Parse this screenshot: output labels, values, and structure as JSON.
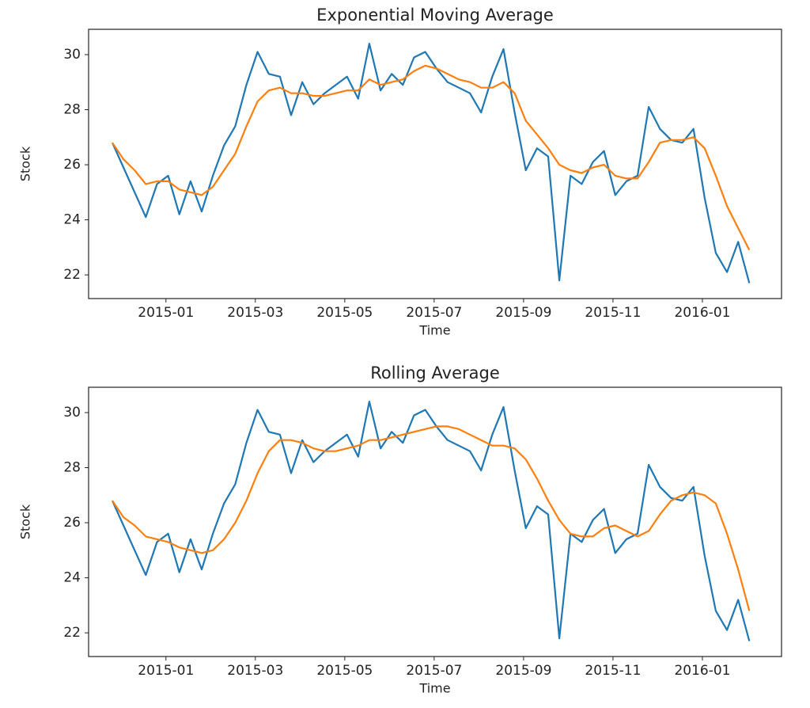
{
  "chart_data": [
    {
      "type": "line",
      "title": "Exponential Moving Average",
      "xlabel": "Time",
      "ylabel": "Stock",
      "x": [
        -1.2,
        -0.95,
        -0.7,
        -0.45,
        -0.2,
        0.05,
        0.3,
        0.55,
        0.8,
        1.05,
        1.3,
        1.55,
        1.8,
        2.05,
        2.3,
        2.55,
        2.8,
        3.05,
        3.3,
        3.55,
        3.8,
        4.05,
        4.3,
        4.55,
        4.8,
        5.05,
        5.3,
        5.55,
        5.8,
        6.05,
        6.3,
        6.55,
        6.8,
        7.05,
        7.3,
        7.55,
        7.8,
        8.05,
        8.3,
        8.55,
        8.8,
        9.05,
        9.3,
        9.55,
        9.8,
        10.05,
        10.3,
        10.55,
        10.8,
        11.05,
        11.3,
        11.55,
        11.8,
        12.05,
        12.3,
        12.55,
        12.8,
        13.05
      ],
      "series": [
        {
          "color": "#1f77b4",
          "values": [
            26.8,
            25.9,
            25.0,
            24.1,
            25.3,
            25.6,
            24.2,
            25.4,
            24.3,
            25.6,
            26.7,
            27.4,
            28.9,
            30.1,
            29.3,
            29.2,
            27.8,
            29.0,
            28.2,
            28.6,
            28.9,
            29.2,
            28.4,
            30.4,
            28.7,
            29.3,
            28.9,
            29.9,
            30.1,
            29.5,
            29.0,
            28.8,
            28.6,
            27.9,
            29.2,
            30.2,
            27.9,
            25.8,
            26.6,
            26.3,
            21.8,
            25.6,
            25.3,
            26.1,
            26.5,
            24.9,
            25.4,
            25.6,
            28.1,
            27.3,
            26.9,
            26.8,
            27.3,
            24.8,
            22.8,
            22.1,
            23.2,
            21.7
          ]
        },
        {
          "color": "#ff7f0e",
          "values": [
            26.8,
            26.2,
            25.8,
            25.3,
            25.4,
            25.4,
            25.1,
            25.0,
            24.9,
            25.2,
            25.8,
            26.4,
            27.4,
            28.3,
            28.7,
            28.8,
            28.6,
            28.6,
            28.5,
            28.5,
            28.6,
            28.7,
            28.7,
            29.1,
            28.9,
            29.0,
            29.1,
            29.4,
            29.6,
            29.5,
            29.3,
            29.1,
            29.0,
            28.8,
            28.8,
            29.0,
            28.6,
            27.6,
            27.1,
            26.6,
            26.0,
            25.8,
            25.7,
            25.9,
            26.0,
            25.6,
            25.5,
            25.5,
            26.1,
            26.8,
            26.9,
            26.9,
            27.0,
            26.6,
            25.6,
            24.5,
            23.7,
            22.9
          ]
        }
      ],
      "xlim": [
        -1.73,
        13.77
      ],
      "ylim": [
        21.14,
        30.92
      ],
      "xticks": [
        {
          "value": 0,
          "label": "2015-01"
        },
        {
          "value": 2,
          "label": "2015-03"
        },
        {
          "value": 4,
          "label": "2015-05"
        },
        {
          "value": 6,
          "label": "2015-07"
        },
        {
          "value": 8,
          "label": "2015-09"
        },
        {
          "value": 10,
          "label": "2015-11"
        },
        {
          "value": 12,
          "label": "2016-01"
        }
      ],
      "yticks": [
        22,
        24,
        26,
        28,
        30
      ]
    },
    {
      "type": "line",
      "title": "Rolling Average",
      "xlabel": "Time",
      "ylabel": "Stock",
      "x": [
        -1.2,
        -0.95,
        -0.7,
        -0.45,
        -0.2,
        0.05,
        0.3,
        0.55,
        0.8,
        1.05,
        1.3,
        1.55,
        1.8,
        2.05,
        2.3,
        2.55,
        2.8,
        3.05,
        3.3,
        3.55,
        3.8,
        4.05,
        4.3,
        4.55,
        4.8,
        5.05,
        5.3,
        5.55,
        5.8,
        6.05,
        6.3,
        6.55,
        6.8,
        7.05,
        7.3,
        7.55,
        7.8,
        8.05,
        8.3,
        8.55,
        8.8,
        9.05,
        9.3,
        9.55,
        9.8,
        10.05,
        10.3,
        10.55,
        10.8,
        11.05,
        11.3,
        11.55,
        11.8,
        12.05,
        12.3,
        12.55,
        12.8,
        13.05
      ],
      "series": [
        {
          "color": "#1f77b4",
          "values": [
            26.8,
            25.9,
            25.0,
            24.1,
            25.3,
            25.6,
            24.2,
            25.4,
            24.3,
            25.6,
            26.7,
            27.4,
            28.9,
            30.1,
            29.3,
            29.2,
            27.8,
            29.0,
            28.2,
            28.6,
            28.9,
            29.2,
            28.4,
            30.4,
            28.7,
            29.3,
            28.9,
            29.9,
            30.1,
            29.5,
            29.0,
            28.8,
            28.6,
            27.9,
            29.2,
            30.2,
            27.9,
            25.8,
            26.6,
            26.3,
            21.8,
            25.6,
            25.3,
            26.1,
            26.5,
            24.9,
            25.4,
            25.6,
            28.1,
            27.3,
            26.9,
            26.8,
            27.3,
            24.8,
            22.8,
            22.1,
            23.2,
            21.7
          ]
        },
        {
          "color": "#ff7f0e",
          "values": [
            26.8,
            26.2,
            25.9,
            25.5,
            25.4,
            25.3,
            25.1,
            25.0,
            24.9,
            25.0,
            25.4,
            26.0,
            26.8,
            27.8,
            28.6,
            29.0,
            29.0,
            28.9,
            28.7,
            28.6,
            28.6,
            28.7,
            28.8,
            29.0,
            29.0,
            29.1,
            29.2,
            29.3,
            29.4,
            29.5,
            29.5,
            29.4,
            29.2,
            29.0,
            28.8,
            28.8,
            28.7,
            28.3,
            27.6,
            26.8,
            26.1,
            25.6,
            25.5,
            25.5,
            25.8,
            25.9,
            25.7,
            25.5,
            25.7,
            26.3,
            26.8,
            27.0,
            27.1,
            27.0,
            26.7,
            25.6,
            24.3,
            22.8
          ]
        }
      ],
      "xlim": [
        -1.73,
        13.77
      ],
      "ylim": [
        21.14,
        30.92
      ],
      "xticks": [
        {
          "value": 0,
          "label": "2015-01"
        },
        {
          "value": 2,
          "label": "2015-03"
        },
        {
          "value": 4,
          "label": "2015-05"
        },
        {
          "value": 6,
          "label": "2015-07"
        },
        {
          "value": 8,
          "label": "2015-09"
        },
        {
          "value": 10,
          "label": "2015-11"
        },
        {
          "value": 12,
          "label": "2016-01"
        }
      ],
      "yticks": [
        22,
        24,
        26,
        28,
        30
      ]
    }
  ]
}
